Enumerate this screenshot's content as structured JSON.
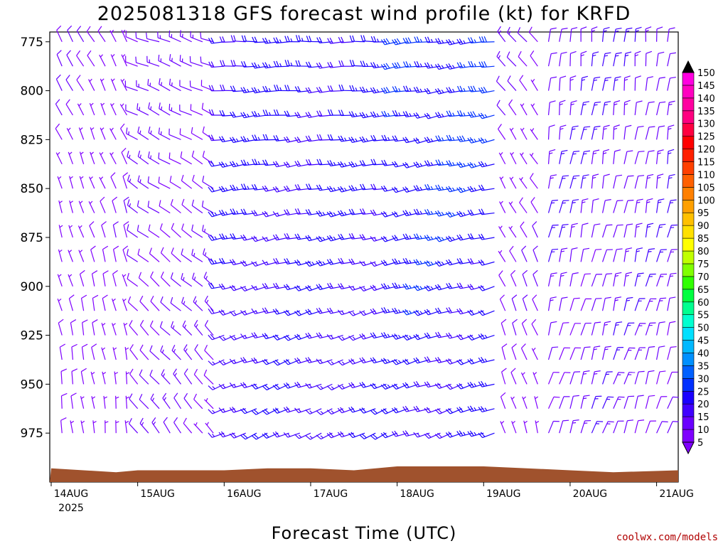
{
  "chart_data": {
    "type": "wind_profile",
    "title": "2025081318 GFS forecast wind profile (kt) for KRFD",
    "xlabel": "Forecast Time (UTC)",
    "credit": "coolwx.com/models",
    "y_ticks": [
      775,
      800,
      825,
      850,
      875,
      900,
      925,
      950,
      975
    ],
    "ylim": [
      770,
      1000
    ],
    "x_ticks": [
      {
        "label": "14AUG",
        "sub": "2025",
        "hour": 0
      },
      {
        "label": "15AUG",
        "sub": "",
        "hour": 24
      },
      {
        "label": "16AUG",
        "sub": "",
        "hour": 48
      },
      {
        "label": "17AUG",
        "sub": "",
        "hour": 72
      },
      {
        "label": "18AUG",
        "sub": "",
        "hour": 96
      },
      {
        "label": "19AUG",
        "sub": "",
        "hour": 120
      },
      {
        "label": "20AUG",
        "sub": "",
        "hour": 144
      },
      {
        "label": "21AUG",
        "sub": "",
        "hour": 168
      }
    ],
    "xlim_hours": [
      0,
      174
    ],
    "colorbar_levels": [
      5,
      10,
      15,
      20,
      25,
      30,
      35,
      40,
      45,
      50,
      55,
      60,
      65,
      70,
      75,
      80,
      85,
      90,
      95,
      100,
      105,
      110,
      115,
      120,
      125,
      130,
      135,
      140,
      145,
      150
    ],
    "colorbar_colors": [
      "#7f00ff",
      "#6a00ff",
      "#4000ff",
      "#1a00ff",
      "#0030ff",
      "#0060ff",
      "#0090ff",
      "#00b8ff",
      "#00e0ff",
      "#00ffd0",
      "#00ff90",
      "#00ff40",
      "#30ff00",
      "#80ff00",
      "#c0ff00",
      "#ffff00",
      "#ffe000",
      "#ffc000",
      "#ffa000",
      "#ff8000",
      "#ff6000",
      "#ff4000",
      "#ff2000",
      "#ff0000",
      "#ff0040",
      "#ff0080",
      "#ff00a0",
      "#ff00c0",
      "#ff00e0",
      "#ff00ff"
    ],
    "surface_pressure": [
      {
        "hour": 0,
        "p": 993
      },
      {
        "hour": 9,
        "p": 994
      },
      {
        "hour": 18,
        "p": 995
      },
      {
        "hour": 24,
        "p": 994
      },
      {
        "hour": 48,
        "p": 994
      },
      {
        "hour": 60,
        "p": 993
      },
      {
        "hour": 72,
        "p": 993
      },
      {
        "hour": 84,
        "p": 994
      },
      {
        "hour": 96,
        "p": 992
      },
      {
        "hour": 108,
        "p": 992
      },
      {
        "hour": 120,
        "p": 992
      },
      {
        "hour": 132,
        "p": 993
      },
      {
        "hour": 144,
        "p": 994
      },
      {
        "hour": 156,
        "p": 995
      },
      {
        "hour": 174,
        "p": 994
      }
    ],
    "time_segments": [
      {
        "from": 0,
        "to": 24,
        "dir": 330,
        "spd": 8,
        "dir_low": 355,
        "spd_low": 6
      },
      {
        "from": 24,
        "to": 48,
        "dir": 290,
        "spd": 12,
        "dir_low": 325,
        "spd_low": 10
      },
      {
        "from": 48,
        "to": 96,
        "dir": 268,
        "spd": 22,
        "dir_low": 245,
        "spd_low": 18
      },
      {
        "from": 96,
        "to": 126,
        "dir": 262,
        "spd": 26,
        "dir_low": 250,
        "spd_low": 20
      },
      {
        "from": 126,
        "to": 138,
        "dir": 320,
        "spd": 10,
        "dir_low": 345,
        "spd_low": 6
      },
      {
        "from": 138,
        "to": 174,
        "dir": 5,
        "spd": 14,
        "dir_low": 20,
        "spd_low": 12
      }
    ]
  }
}
